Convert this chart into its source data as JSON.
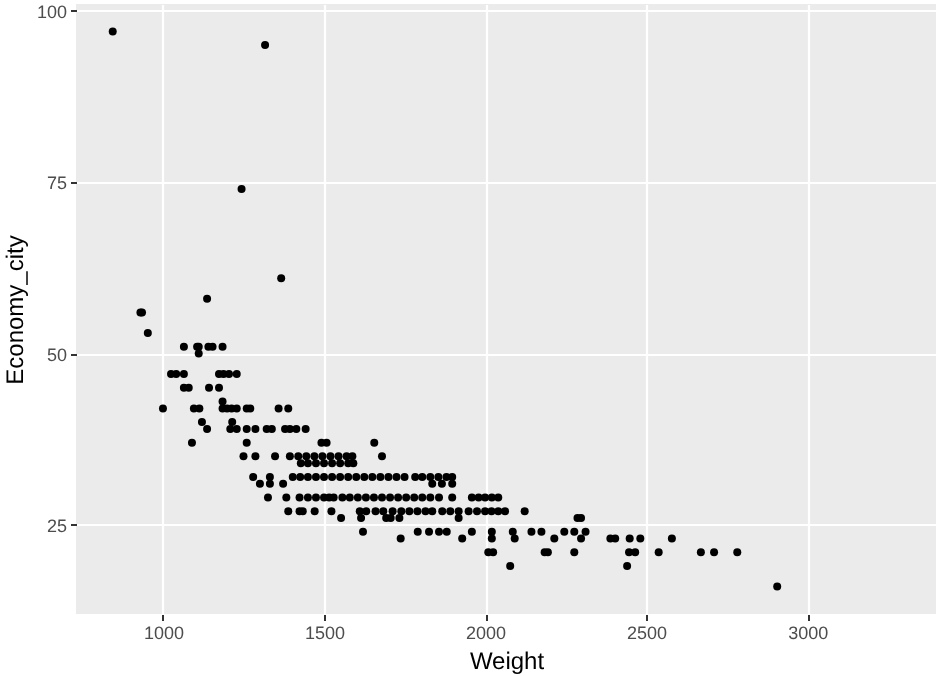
{
  "chart_data": {
    "type": "scatter",
    "xlabel": "Weight",
    "ylabel": "Economy_city",
    "xlim": [
      730,
      3400
    ],
    "ylim": [
      12,
      101
    ],
    "xticks": [
      1000,
      1500,
      2000,
      2500,
      3000
    ],
    "yticks": [
      25,
      50,
      75,
      100
    ],
    "grid": true,
    "marker": "circle",
    "series": [
      {
        "color": "#000000",
        "x": [
          844,
          1317,
          1244,
          1367,
          1137,
          930,
          935,
          953,
          1065,
          1106,
          1111,
          1141,
          1154,
          1185,
          1111,
          1025,
          1041,
          1065,
          1174,
          1188,
          1205,
          1229,
          1065,
          1080,
          1143,
          1174,
          1000,
          1096,
          1113,
          1185,
          1199,
          1213,
          1229,
          1260,
          1271,
          1359,
          1389,
          1185,
          1121,
          1215,
          1137,
          1209,
          1229,
          1260,
          1287,
          1322,
          1338,
          1379,
          1394,
          1414,
          1443,
          1090,
          1260,
          1492,
          1508,
          1656,
          1250,
          1287,
          1348,
          1394,
          1420,
          1445,
          1470,
          1495,
          1520,
          1545,
          1570,
          1588,
          1680,
          1428,
          1450,
          1475,
          1500,
          1525,
          1550,
          1575,
          1591,
          1280,
          1332,
          1403,
          1426,
          1450,
          1475,
          1500,
          1525,
          1550,
          1575,
          1600,
          1625,
          1650,
          1675,
          1700,
          1725,
          1750,
          1783,
          1805,
          1830,
          1855,
          1880,
          1898,
          1301,
          1332,
          1373,
          1836,
          1866,
          1898,
          1326,
          1383,
          1424,
          1450,
          1475,
          1500,
          1516,
          1530,
          1557,
          1580,
          1605,
          1630,
          1655,
          1680,
          1705,
          1730,
          1755,
          1780,
          1805,
          1830,
          1857,
          1898,
          1959,
          1980,
          2000,
          2021,
          2041,
          1389,
          1424,
          1434,
          1471,
          1523,
          1611,
          1631,
          1660,
          1684,
          1713,
          1740,
          1765,
          1790,
          1815,
          1836,
          1867,
          1892,
          1918,
          1949,
          1975,
          2000,
          2020,
          2041,
          2062,
          2123,
          1553,
          1615,
          1693,
          1707,
          1734,
          1918,
          2287,
          2298,
          1621,
          1791,
          1826,
          1857,
          1881,
          1959,
          2021,
          2086,
          2144,
          2175,
          2246,
          2277,
          2312,
          1738,
          1929,
          2021,
          2092,
          2215,
          2298,
          2389,
          2404,
          2449,
          2482,
          2580,
          2010,
          2025,
          2185,
          2195,
          2277,
          2447,
          2466,
          2539,
          2670,
          2711,
          2783,
          2078,
          2441,
          2907
        ],
        "values": [
          97,
          95,
          74,
          61,
          58,
          56,
          56,
          53,
          51,
          51,
          51,
          51,
          51,
          51,
          50,
          47,
          47,
          47,
          47,
          47,
          47,
          47,
          45,
          45,
          45,
          45,
          42,
          42,
          42,
          42,
          42,
          42,
          42,
          42,
          42,
          42,
          42,
          43,
          40,
          40,
          39,
          39,
          39,
          39,
          39,
          39,
          39,
          39,
          39,
          39,
          39,
          37,
          37,
          37,
          37,
          37,
          35,
          35,
          35,
          35,
          35,
          35,
          35,
          35,
          35,
          35,
          35,
          35,
          35,
          34,
          34,
          34,
          34,
          34,
          34,
          34,
          34,
          32,
          32,
          32,
          32,
          32,
          32,
          32,
          32,
          32,
          32,
          32,
          32,
          32,
          32,
          32,
          32,
          32,
          32,
          32,
          32,
          32,
          32,
          32,
          31,
          31,
          31,
          31,
          31,
          31,
          29,
          29,
          29,
          29,
          29,
          29,
          29,
          29,
          29,
          29,
          29,
          29,
          29,
          29,
          29,
          29,
          29,
          29,
          29,
          29,
          29,
          29,
          29,
          29,
          29,
          29,
          29,
          27,
          27,
          27,
          27,
          27,
          27,
          27,
          27,
          27,
          27,
          27,
          27,
          27,
          27,
          27,
          27,
          27,
          27,
          27,
          27,
          27,
          27,
          27,
          27,
          27,
          26,
          26,
          26,
          26,
          26,
          26,
          26,
          26,
          24,
          24,
          24,
          24,
          24,
          24,
          24,
          24,
          24,
          24,
          24,
          24,
          24,
          23,
          23,
          23,
          23,
          23,
          23,
          23,
          23,
          23,
          23,
          23,
          21,
          21,
          21,
          21,
          21,
          21,
          21,
          21,
          21,
          21,
          21,
          19,
          19,
          16
        ]
      }
    ]
  }
}
